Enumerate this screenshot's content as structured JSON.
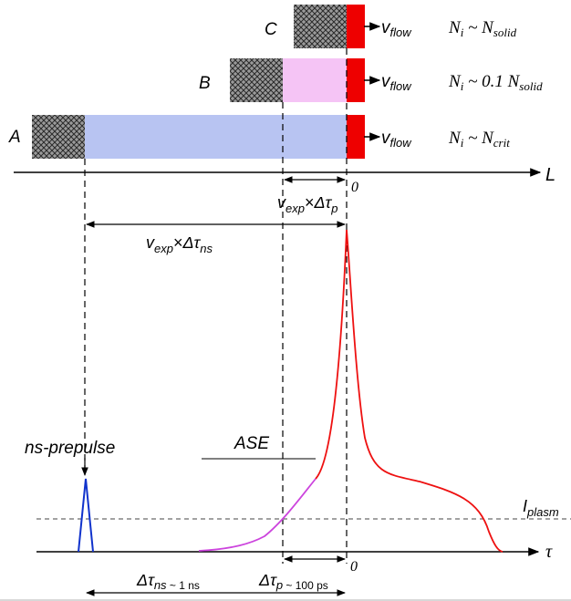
{
  "cases": [
    {
      "label": "A",
      "density": {
        "N": "N",
        "sub_i": "i",
        "rel": " ~ ",
        "factor": "",
        "N2": "N",
        "sub2": "crit"
      }
    },
    {
      "label": "B",
      "density": {
        "N": "N",
        "sub_i": "i",
        "rel": " ~ ",
        "factor": "0.1 ",
        "N2": "N",
        "sub2": "solid"
      }
    },
    {
      "label": "C",
      "density": {
        "N": "N",
        "sub_i": "i",
        "rel": " ~ ",
        "factor": "",
        "N2": "N",
        "sub2": "solid"
      }
    }
  ],
  "flow": {
    "v": "v",
    "sub": "flow"
  },
  "axes": {
    "L": "L",
    "tau": "τ",
    "zero_top": "0",
    "zero_bottom": "0"
  },
  "annotations": {
    "vexp_p": {
      "v": "v",
      "sub": "exp",
      "times": "×",
      "delta": "Δτ",
      "sub2": "p"
    },
    "vexp_ns": {
      "v": "v",
      "sub": "exp",
      "times": "×",
      "delta": "Δτ",
      "sub2": "ns"
    },
    "ns_prepulse": "ns-prepulse",
    "ase": "ASE",
    "i_plasma": {
      "I": "I",
      "sub": "plasm"
    },
    "dt_ns": {
      "delta": "Δτ",
      "sub": "ns",
      "approx": " ~ 1 ns"
    },
    "dt_p": {
      "delta": "Δτ",
      "sub": "p",
      "approx": " ~ 100 ps"
    }
  },
  "colors": {
    "plasma_A": "#b8c4f2",
    "plasma_B": "#f5c4f5",
    "target": "#ee0000",
    "hatch": "#888888",
    "pulse": "#ee1111",
    "ase": "#cc44dd",
    "prepulse": "#1133cc"
  }
}
